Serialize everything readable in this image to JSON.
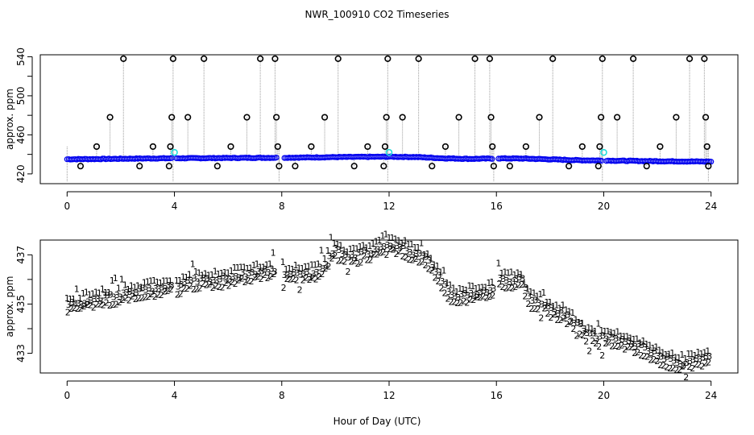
{
  "title": "NWR_100910  CO2 Timeseries",
  "x_label": "Hour of Day (UTC)",
  "colors": {
    "spike_marker": "#000000",
    "dropline": "#9a9a9a",
    "main_series": "#0000ee",
    "highlight": "#22dddd",
    "series_1": "#dd0000",
    "series_2": "#00aa00",
    "series_3": "#0000cc"
  },
  "chart_data": [
    {
      "type": "scatter",
      "title": "",
      "ylabel": "approx. ppm",
      "xlabel": "",
      "xlim": [
        -1,
        25
      ],
      "ylim": [
        410,
        542
      ],
      "x_ticks": [
        0,
        4,
        8,
        12,
        16,
        20,
        24
      ],
      "y_ticks": [
        420,
        460,
        500,
        540
      ],
      "y_tick_labels": [
        "420",
        "460",
        "500",
        "540"
      ],
      "y_minor_ticks": [
        440,
        480,
        520
      ],
      "baseline": [
        [
          0,
          435.0
        ],
        [
          1,
          435.2
        ],
        [
          2,
          435.5
        ],
        [
          3,
          435.8
        ],
        [
          4,
          436.0
        ],
        [
          5,
          436.1
        ],
        [
          6,
          436.3
        ],
        [
          7,
          436.5
        ],
        [
          7.8,
          436.5
        ],
        [
          8,
          436.6
        ],
        [
          9,
          436.8
        ],
        [
          10,
          437.2
        ],
        [
          11,
          437.4
        ],
        [
          12,
          437.6
        ],
        [
          13,
          437.3
        ],
        [
          14,
          436.0
        ],
        [
          15,
          435.4
        ],
        [
          15.9,
          435.7
        ],
        [
          16,
          435.9
        ],
        [
          17,
          435.7
        ],
        [
          18,
          434.9
        ],
        [
          19,
          434.0
        ],
        [
          20,
          433.7
        ],
        [
          21,
          433.3
        ],
        [
          22,
          433.0
        ],
        [
          23,
          432.8
        ],
        [
          24,
          432.6
        ]
      ],
      "spikes": [
        {
          "x": 0.5,
          "y": 428
        },
        {
          "x": 1.1,
          "y": 448
        },
        {
          "x": 1.6,
          "y": 478
        },
        {
          "x": 2.1,
          "y": 538
        },
        {
          "x": 2.7,
          "y": 428
        },
        {
          "x": 3.2,
          "y": 448
        },
        {
          "x": 3.8,
          "y": 428
        },
        {
          "x": 3.85,
          "y": 448
        },
        {
          "x": 3.9,
          "y": 478
        },
        {
          "x": 3.95,
          "y": 538
        },
        {
          "x": 4.5,
          "y": 478
        },
        {
          "x": 5.1,
          "y": 538
        },
        {
          "x": 5.6,
          "y": 428
        },
        {
          "x": 6.1,
          "y": 448
        },
        {
          "x": 6.7,
          "y": 478
        },
        {
          "x": 7.2,
          "y": 538
        },
        {
          "x": 7.75,
          "y": 538
        },
        {
          "x": 7.8,
          "y": 478
        },
        {
          "x": 7.85,
          "y": 448
        },
        {
          "x": 7.9,
          "y": 428
        },
        {
          "x": 8.5,
          "y": 428
        },
        {
          "x": 9.1,
          "y": 448
        },
        {
          "x": 9.6,
          "y": 478
        },
        {
          "x": 10.1,
          "y": 538
        },
        {
          "x": 10.7,
          "y": 428
        },
        {
          "x": 11.2,
          "y": 448
        },
        {
          "x": 11.8,
          "y": 428
        },
        {
          "x": 11.85,
          "y": 448
        },
        {
          "x": 11.9,
          "y": 478
        },
        {
          "x": 11.95,
          "y": 538
        },
        {
          "x": 12.5,
          "y": 478
        },
        {
          "x": 13.1,
          "y": 538
        },
        {
          "x": 13.6,
          "y": 428
        },
        {
          "x": 14.1,
          "y": 448
        },
        {
          "x": 14.6,
          "y": 478
        },
        {
          "x": 15.2,
          "y": 538
        },
        {
          "x": 15.75,
          "y": 538
        },
        {
          "x": 15.8,
          "y": 478
        },
        {
          "x": 15.85,
          "y": 448
        },
        {
          "x": 15.9,
          "y": 428
        },
        {
          "x": 16.5,
          "y": 428
        },
        {
          "x": 17.1,
          "y": 448
        },
        {
          "x": 17.6,
          "y": 478
        },
        {
          "x": 18.1,
          "y": 538
        },
        {
          "x": 18.7,
          "y": 428
        },
        {
          "x": 19.2,
          "y": 448
        },
        {
          "x": 19.8,
          "y": 428
        },
        {
          "x": 19.85,
          "y": 448
        },
        {
          "x": 19.9,
          "y": 478
        },
        {
          "x": 19.95,
          "y": 538
        },
        {
          "x": 20.5,
          "y": 478
        },
        {
          "x": 21.1,
          "y": 538
        },
        {
          "x": 21.6,
          "y": 428
        },
        {
          "x": 22.1,
          "y": 448
        },
        {
          "x": 22.7,
          "y": 478
        },
        {
          "x": 23.2,
          "y": 538
        },
        {
          "x": 23.75,
          "y": 538
        },
        {
          "x": 23.8,
          "y": 478
        },
        {
          "x": 23.85,
          "y": 448
        },
        {
          "x": 23.9,
          "y": 428
        }
      ],
      "highlight_points": [
        {
          "x": 4.0,
          "y": 442
        },
        {
          "x": 12.0,
          "y": 442
        },
        {
          "x": 20.0,
          "y": 442
        }
      ]
    },
    {
      "type": "scatter",
      "title": "",
      "ylabel": "approx. ppm",
      "xlabel": "Hour of Day (UTC)",
      "xlim": [
        -1,
        25
      ],
      "ylim": [
        432.2,
        437.6
      ],
      "x_ticks": [
        0,
        4,
        8,
        12,
        16,
        20,
        24
      ],
      "y_ticks": [
        433,
        435,
        437
      ],
      "y_tick_labels": [
        "433",
        "435",
        "437"
      ],
      "y_minor_ticks": [
        434,
        436
      ],
      "series_markers": [
        "1",
        "2",
        "3"
      ],
      "points_y_offset": {
        "1": 0.25,
        "2": -0.25,
        "3": 0.0
      },
      "baseline": [
        [
          0,
          435.0
        ],
        [
          0.5,
          435.1
        ],
        [
          1,
          435.2
        ],
        [
          1.5,
          435.3
        ],
        [
          2,
          435.4
        ],
        [
          2.5,
          435.5
        ],
        [
          3,
          435.6
        ],
        [
          3.5,
          435.7
        ],
        [
          3.8,
          435.8
        ],
        [
          4.05,
          435.7
        ],
        [
          4.5,
          435.9
        ],
        [
          5,
          436.0
        ],
        [
          5.5,
          436.0
        ],
        [
          6,
          436.1
        ],
        [
          6.5,
          436.2
        ],
        [
          7,
          436.3
        ],
        [
          7.7,
          436.4
        ],
        [
          8.05,
          436.2
        ],
        [
          8.5,
          436.3
        ],
        [
          9,
          436.2
        ],
        [
          9.5,
          436.5
        ],
        [
          9.9,
          437.2
        ],
        [
          10.3,
          437.0
        ],
        [
          10.6,
          436.9
        ],
        [
          11,
          437.1
        ],
        [
          11.5,
          437.2
        ],
        [
          11.8,
          437.3
        ],
        [
          12,
          437.4
        ],
        [
          12.5,
          437.3
        ],
        [
          13,
          437.0
        ],
        [
          13.4,
          436.8
        ],
        [
          13.8,
          436.2
        ],
        [
          14.2,
          435.5
        ],
        [
          14.6,
          435.3
        ],
        [
          15,
          435.4
        ],
        [
          15.4,
          435.5
        ],
        [
          15.9,
          435.6
        ],
        [
          16.05,
          436.0
        ],
        [
          16.6,
          436.0
        ],
        [
          16.9,
          436.0
        ],
        [
          17.2,
          435.2
        ],
        [
          17.6,
          435.1
        ],
        [
          18,
          434.8
        ],
        [
          18.5,
          434.6
        ],
        [
          19,
          434.2
        ],
        [
          19.3,
          433.8
        ],
        [
          19.6,
          433.7
        ],
        [
          19.9,
          433.6
        ],
        [
          20.05,
          433.7
        ],
        [
          20.5,
          433.6
        ],
        [
          21,
          433.4
        ],
        [
          21.5,
          433.2
        ],
        [
          22,
          432.9
        ],
        [
          22.5,
          432.7
        ],
        [
          23,
          432.6
        ],
        [
          23.5,
          432.8
        ],
        [
          23.9,
          432.9
        ]
      ]
    }
  ]
}
